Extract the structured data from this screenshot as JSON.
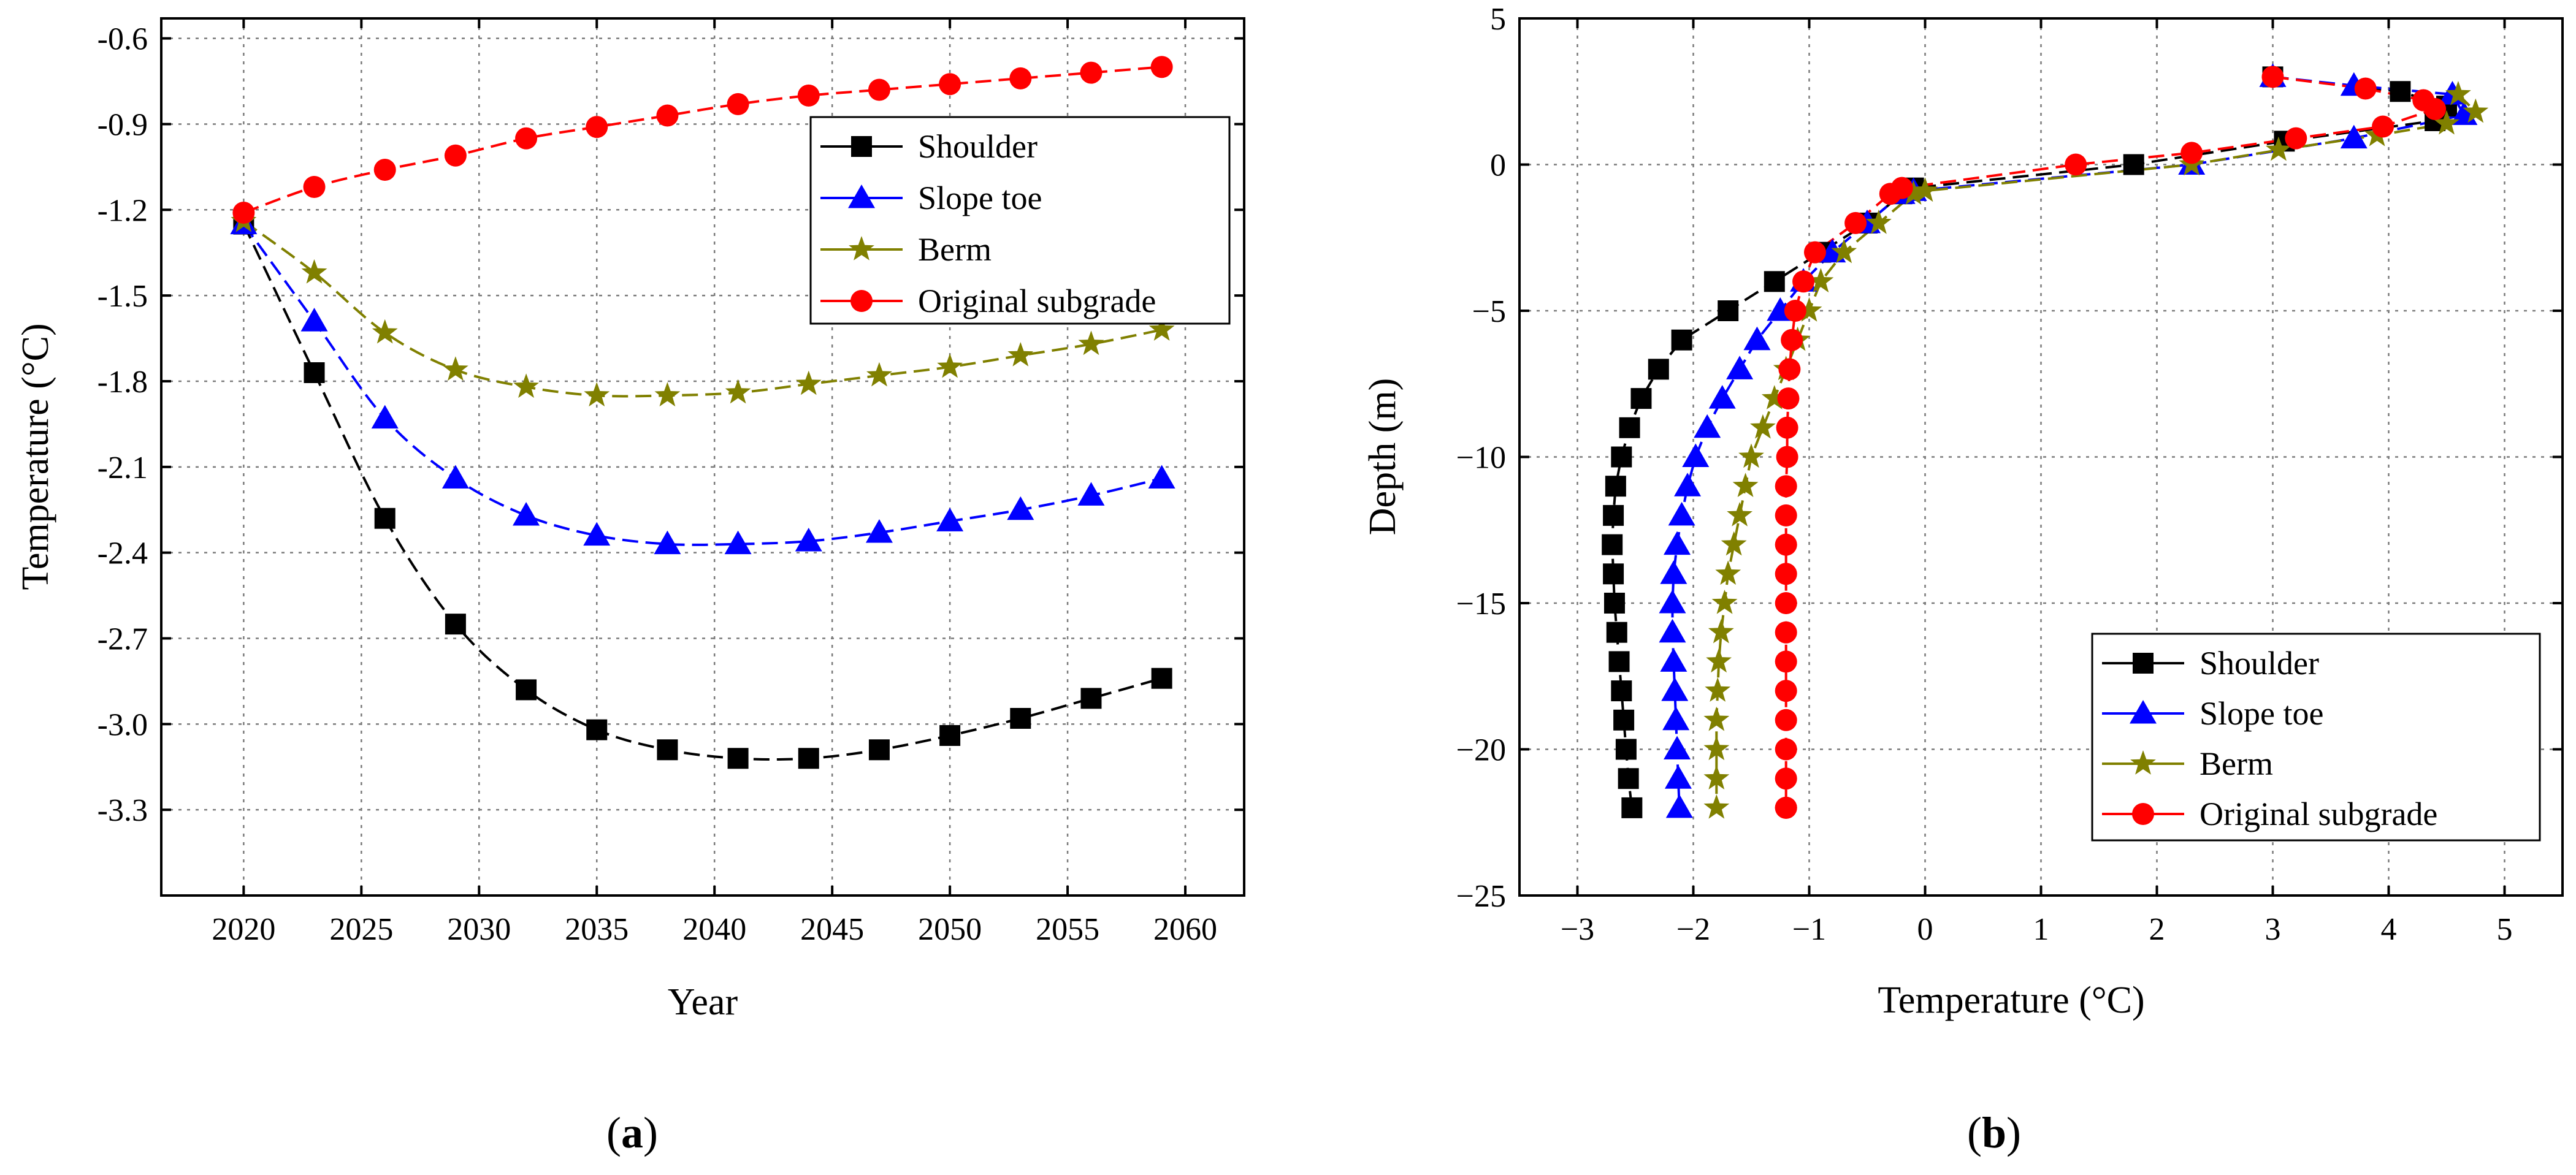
{
  "chart_data": [
    {
      "type": "line",
      "panel_label": "a",
      "title": "",
      "xlabel": "Year",
      "ylabel": "Temperature (°C)",
      "xlim": [
        2016.5,
        2062.5
      ],
      "ylim": [
        -3.6,
        -0.53
      ],
      "xticks": [
        2020,
        2025,
        2030,
        2035,
        2040,
        2045,
        2050,
        2055,
        2060
      ],
      "yticks": [
        -3.3,
        -3.0,
        -2.7,
        -2.4,
        -2.1,
        -1.8,
        -1.5,
        -1.2,
        -0.9,
        -0.6
      ],
      "xtick_labels": [
        "2020",
        "2025",
        "2030",
        "2035",
        "2040",
        "2045",
        "2050",
        "2055",
        "2060"
      ],
      "ytick_labels": [
        "-3.3",
        "-3.0",
        "-2.7",
        "-2.4",
        "-2.1",
        "-1.8",
        "-1.5",
        "-1.2",
        "-0.9",
        "-0.6"
      ],
      "grid": true,
      "legend_position": "top-right",
      "series": [
        {
          "name": "Shoulder",
          "color": "#000000",
          "marker": "square",
          "x": [
            2020,
            2023,
            2026,
            2029,
            2032,
            2035,
            2038,
            2041,
            2044,
            2047,
            2050,
            2053,
            2056,
            2059
          ],
          "y": [
            -1.25,
            -1.77,
            -2.28,
            -2.65,
            -2.88,
            -3.02,
            -3.09,
            -3.12,
            -3.12,
            -3.09,
            -3.04,
            -2.98,
            -2.91,
            -2.84
          ]
        },
        {
          "name": "Slope toe",
          "color": "#0000ff",
          "marker": "triangle",
          "x": [
            2020,
            2023,
            2026,
            2029,
            2032,
            2035,
            2038,
            2041,
            2044,
            2047,
            2050,
            2053,
            2056,
            2059
          ],
          "y": [
            -1.25,
            -1.59,
            -1.93,
            -2.14,
            -2.27,
            -2.34,
            -2.37,
            -2.37,
            -2.36,
            -2.33,
            -2.29,
            -2.25,
            -2.2,
            -2.14
          ]
        },
        {
          "name": "Berm",
          "color": "#808000",
          "marker": "star",
          "x": [
            2020,
            2023,
            2026,
            2029,
            2032,
            2035,
            2038,
            2041,
            2044,
            2047,
            2050,
            2053,
            2056,
            2059
          ],
          "y": [
            -1.24,
            -1.42,
            -1.63,
            -1.76,
            -1.82,
            -1.85,
            -1.85,
            -1.84,
            -1.81,
            -1.78,
            -1.75,
            -1.71,
            -1.67,
            -1.62
          ]
        },
        {
          "name": "Original subgrade",
          "color": "#ff0000",
          "marker": "circle",
          "x": [
            2020,
            2023,
            2026,
            2029,
            2032,
            2035,
            2038,
            2041,
            2044,
            2047,
            2050,
            2053,
            2056,
            2059
          ],
          "y": [
            -1.21,
            -1.12,
            -1.06,
            -1.01,
            -0.95,
            -0.91,
            -0.87,
            -0.83,
            -0.8,
            -0.78,
            -0.76,
            -0.74,
            -0.72,
            -0.7
          ]
        }
      ]
    },
    {
      "type": "line",
      "panel_label": "b",
      "title": "",
      "xlabel": "Temperature (°C)",
      "ylabel": "Depth (m)",
      "xlim": [
        -3.5,
        5.5
      ],
      "ylim": [
        -25,
        5
      ],
      "xticks": [
        -3,
        -2,
        -1,
        0,
        1,
        2,
        3,
        4,
        5
      ],
      "yticks": [
        5,
        0,
        -5,
        -10,
        -15,
        -20,
        -25
      ],
      "xtick_labels": [
        "−3",
        "−2",
        "−1",
        "0",
        "1",
        "2",
        "3",
        "4",
        "5"
      ],
      "ytick_labels": [
        "5",
        "0",
        "−5",
        "−10",
        "−15",
        "−20",
        "−25"
      ],
      "grid": true,
      "legend_position": "bottom-right",
      "series": [
        {
          "name": "Shoulder",
          "color": "#000000",
          "marker": "square",
          "x": [
            3.0,
            4.1,
            4.5,
            4.4,
            3.1,
            1.8,
            -0.1,
            -0.2,
            -0.5,
            -0.9,
            -1.3,
            -1.7,
            -2.1,
            -2.3,
            -2.45,
            -2.55,
            -2.62,
            -2.67,
            -2.69,
            -2.7,
            -2.69,
            -2.68,
            -2.66,
            -2.64,
            -2.62,
            -2.6,
            -2.58,
            -2.56,
            -2.53
          ],
          "y": [
            3,
            2.5,
            2,
            1.5,
            0.8,
            0,
            -0.8,
            -1,
            -2,
            -3,
            -4,
            -5,
            -6,
            -7,
            -8,
            -9,
            -10,
            -11,
            -12,
            -13,
            -14,
            -15,
            -16,
            -17,
            -18,
            -19,
            -20,
            -21,
            -22
          ]
        },
        {
          "name": "Slope toe",
          "color": "#0000ff",
          "marker": "triangle",
          "x": [
            3.0,
            3.7,
            4.55,
            4.65,
            3.7,
            2.3,
            -0.1,
            -0.2,
            -0.5,
            -0.8,
            -1.05,
            -1.25,
            -1.45,
            -1.6,
            -1.75,
            -1.88,
            -1.98,
            -2.05,
            -2.1,
            -2.14,
            -2.17,
            -2.18,
            -2.18,
            -2.17,
            -2.16,
            -2.15,
            -2.14,
            -2.13,
            -2.12
          ],
          "y": [
            3,
            2.7,
            2.4,
            1.7,
            0.9,
            0,
            -0.9,
            -1,
            -2,
            -3,
            -4,
            -5,
            -6,
            -7,
            -8,
            -9,
            -10,
            -11,
            -12,
            -13,
            -14,
            -15,
            -16,
            -17,
            -18,
            -19,
            -20,
            -21,
            -22
          ]
        },
        {
          "name": "Berm",
          "color": "#808000",
          "marker": "star",
          "x": [
            4.6,
            4.75,
            4.5,
            3.9,
            3.05,
            2.3,
            0.0,
            -0.1,
            -0.4,
            -0.7,
            -0.9,
            -1.0,
            -1.1,
            -1.2,
            -1.3,
            -1.4,
            -1.5,
            -1.55,
            -1.6,
            -1.65,
            -1.7,
            -1.73,
            -1.76,
            -1.78,
            -1.79,
            -1.8,
            -1.8,
            -1.8,
            -1.8
          ],
          "y": [
            2.4,
            1.8,
            1.4,
            1,
            0.5,
            0,
            -0.9,
            -1,
            -2,
            -3,
            -4,
            -5,
            -6,
            -7,
            -8,
            -9,
            -10,
            -11,
            -12,
            -13,
            -14,
            -15,
            -16,
            -17,
            -18,
            -19,
            -20,
            -21,
            -22
          ]
        },
        {
          "name": "Original subgrade",
          "color": "#ff0000",
          "marker": "circle",
          "x": [
            3.0,
            3.8,
            4.3,
            4.4,
            3.95,
            3.2,
            2.3,
            1.3,
            -0.2,
            -0.3,
            -0.6,
            -0.95,
            -1.05,
            -1.12,
            -1.15,
            -1.17,
            -1.18,
            -1.19,
            -1.19,
            -1.2,
            -1.2,
            -1.2,
            -1.2,
            -1.2,
            -1.2,
            -1.2,
            -1.2,
            -1.2,
            -1.2,
            -1.2,
            -1.2,
            -1.2
          ],
          "y": [
            3,
            2.6,
            2.2,
            1.9,
            1.3,
            0.9,
            0.4,
            0,
            -0.8,
            -1,
            -2,
            -3,
            -4,
            -5,
            -6,
            -7,
            -8,
            -9,
            -10,
            -11,
            -12,
            -13,
            -14,
            -15,
            -16,
            -17,
            -18,
            -19,
            -20,
            -21,
            -22,
            -22
          ]
        }
      ]
    }
  ]
}
